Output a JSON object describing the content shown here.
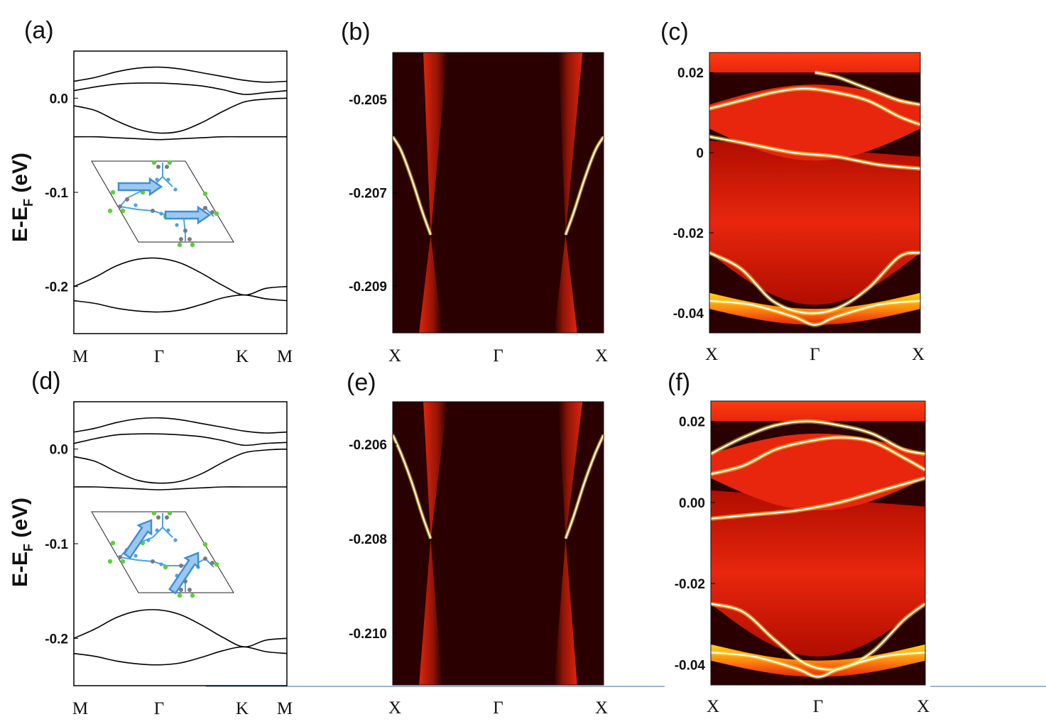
{
  "figure": {
    "ylabel_main": "E-E",
    "ylabel_sub": "F",
    "ylabel_unit": " (eV)"
  },
  "colors": {
    "band_line": "#000000",
    "spectral_background": "#2a0000",
    "spectral_mid": "#e8260d",
    "spectral_high": "#ffd21a",
    "spectral_peak": "#ffffff",
    "spin_arrow": "#3d8fd6",
    "spin_arrow_fill": "#9cc8f0",
    "atom_carbon": "#7a7a7a",
    "atom_nitrogen": "#4aa2e6",
    "atom_cl": "#5ccf3a"
  },
  "chart_data": [
    {
      "id": "a",
      "panel_label": "(a)",
      "type": "line",
      "ylim": [
        -0.25,
        0.05
      ],
      "yticks": [
        "0.0",
        "-0.1",
        "-0.2"
      ],
      "ytick_values": [
        0.0,
        -0.1,
        -0.2
      ],
      "k_positions": [
        0,
        0.4,
        0.8,
        1.0
      ],
      "k_labels": [
        "M",
        "Γ",
        "K",
        "M"
      ],
      "inset": "spin-in-plane",
      "series": [
        {
          "x": [
            0,
            0.1,
            0.2,
            0.3,
            0.4,
            0.5,
            0.6,
            0.7,
            0.8,
            0.9,
            1.0
          ],
          "values": [
            0.018,
            0.022,
            0.028,
            0.032,
            0.033,
            0.031,
            0.027,
            0.023,
            0.019,
            0.017,
            0.018
          ]
        },
        {
          "x": [
            0,
            0.1,
            0.2,
            0.3,
            0.4,
            0.5,
            0.6,
            0.7,
            0.8,
            0.9,
            1.0
          ],
          "values": [
            0.008,
            0.012,
            0.015,
            0.016,
            0.016,
            0.015,
            0.013,
            0.009,
            0.004,
            0.006,
            0.008
          ]
        },
        {
          "x": [
            0,
            0.1,
            0.2,
            0.3,
            0.4,
            0.5,
            0.6,
            0.7,
            0.8,
            0.9,
            1.0
          ],
          "values": [
            -0.008,
            -0.013,
            -0.024,
            -0.033,
            -0.037,
            -0.035,
            -0.026,
            -0.014,
            -0.004,
            -0.001,
            0.0
          ]
        },
        {
          "x": [
            0,
            0.1,
            0.2,
            0.3,
            0.4,
            0.5,
            0.6,
            0.7,
            0.8,
            0.9,
            1.0
          ],
          "values": [
            -0.041,
            -0.041,
            -0.042,
            -0.043,
            -0.044,
            -0.043,
            -0.042,
            -0.041,
            -0.041,
            -0.041,
            -0.041
          ]
        },
        {
          "x": [
            0,
            0.1,
            0.2,
            0.3,
            0.4,
            0.5,
            0.6,
            0.7,
            0.8,
            0.9,
            1.0
          ],
          "values": [
            -0.2,
            -0.19,
            -0.178,
            -0.171,
            -0.17,
            -0.175,
            -0.186,
            -0.199,
            -0.209,
            -0.202,
            -0.2
          ]
        },
        {
          "x": [
            0,
            0.1,
            0.2,
            0.3,
            0.4,
            0.5,
            0.6,
            0.7,
            0.8,
            0.9,
            1.0
          ],
          "values": [
            -0.215,
            -0.218,
            -0.223,
            -0.226,
            -0.227,
            -0.225,
            -0.219,
            -0.212,
            -0.209,
            -0.213,
            -0.215
          ]
        }
      ]
    },
    {
      "id": "b",
      "panel_label": "(b)",
      "type": "heatmap",
      "ylim": [
        -0.21,
        -0.204
      ],
      "yticks": [
        "-0.205",
        "-0.207",
        "-0.209"
      ],
      "ytick_values": [
        -0.205,
        -0.207,
        -0.209
      ],
      "k_labels": [
        "X",
        "Γ",
        "X"
      ],
      "cone_energy": -0.2079,
      "cone_k": [
        0.18,
        0.82
      ],
      "edge_states": [
        {
          "x": [
            0.0,
            0.04,
            0.09,
            0.14,
            0.18
          ],
          "values": [
            -0.2058,
            -0.2061,
            -0.2067,
            -0.2074,
            -0.2079
          ]
        },
        {
          "x": [
            1.0,
            0.96,
            0.91,
            0.86,
            0.82
          ],
          "values": [
            -0.2058,
            -0.2061,
            -0.2067,
            -0.2074,
            -0.2079
          ]
        }
      ]
    },
    {
      "id": "c",
      "panel_label": "(c)",
      "type": "heatmap",
      "ylim": [
        -0.045,
        0.025
      ],
      "yticks": [
        "0.02",
        "0",
        "-0.02",
        "-0.04"
      ],
      "ytick_values": [
        0.02,
        0.0,
        -0.02,
        -0.04
      ],
      "k_labels": [
        "X",
        "Γ",
        "X"
      ],
      "edge_states": [
        {
          "x": [
            0.0,
            0.2,
            0.4,
            0.6,
            0.8,
            1.0
          ],
          "values": [
            0.004,
            0.002,
            0.0,
            -0.001,
            -0.003,
            -0.004
          ]
        },
        {
          "x": [
            0.5,
            0.6,
            0.7,
            0.8,
            0.9,
            1.0
          ],
          "values": [
            0.02,
            0.019,
            0.017,
            0.015,
            0.013,
            0.012
          ]
        },
        {
          "x": [
            0.0,
            0.15,
            0.3,
            0.45,
            0.6,
            0.75,
            0.9,
            1.0
          ],
          "values": [
            0.011,
            0.013,
            0.015,
            0.016,
            0.015,
            0.013,
            0.009,
            0.007
          ]
        },
        {
          "x": [
            0.0,
            0.15,
            0.3,
            0.45,
            0.6,
            0.75,
            0.9,
            1.0
          ],
          "values": [
            -0.025,
            -0.029,
            -0.037,
            -0.04,
            -0.039,
            -0.034,
            -0.026,
            -0.025
          ]
        },
        {
          "x": [
            0.0,
            0.2,
            0.4,
            0.5,
            0.6,
            0.8,
            1.0
          ],
          "values": [
            -0.037,
            -0.038,
            -0.041,
            -0.043,
            -0.041,
            -0.038,
            -0.037
          ]
        }
      ]
    },
    {
      "id": "d",
      "panel_label": "(d)",
      "type": "line",
      "ylim": [
        -0.25,
        0.05
      ],
      "yticks": [
        "0.0",
        "-0.1",
        "-0.2"
      ],
      "ytick_values": [
        0.0,
        -0.1,
        -0.2
      ],
      "k_positions": [
        0,
        0.4,
        0.8,
        1.0
      ],
      "k_labels": [
        "M",
        "Γ",
        "K",
        "M"
      ],
      "inset": "spin-tilted",
      "series": [
        {
          "x": [
            0,
            0.1,
            0.2,
            0.3,
            0.4,
            0.5,
            0.6,
            0.7,
            0.8,
            0.9,
            1.0
          ],
          "values": [
            0.018,
            0.022,
            0.028,
            0.032,
            0.033,
            0.031,
            0.027,
            0.023,
            0.019,
            0.017,
            0.018
          ]
        },
        {
          "x": [
            0,
            0.1,
            0.2,
            0.3,
            0.4,
            0.5,
            0.6,
            0.7,
            0.8,
            0.9,
            1.0
          ],
          "values": [
            0.006,
            0.011,
            0.015,
            0.016,
            0.016,
            0.015,
            0.013,
            0.009,
            0.004,
            0.006,
            0.007
          ]
        },
        {
          "x": [
            0,
            0.1,
            0.2,
            0.3,
            0.4,
            0.5,
            0.6,
            0.7,
            0.8,
            0.9,
            1.0
          ],
          "values": [
            -0.008,
            -0.013,
            -0.024,
            -0.033,
            -0.036,
            -0.034,
            -0.026,
            -0.014,
            -0.004,
            -0.001,
            0.0
          ]
        },
        {
          "x": [
            0,
            0.1,
            0.2,
            0.3,
            0.4,
            0.5,
            0.6,
            0.7,
            0.8,
            0.9,
            1.0
          ],
          "values": [
            -0.04,
            -0.04,
            -0.041,
            -0.042,
            -0.043,
            -0.042,
            -0.041,
            -0.04,
            -0.04,
            -0.04,
            -0.04
          ]
        },
        {
          "x": [
            0,
            0.1,
            0.2,
            0.3,
            0.4,
            0.5,
            0.6,
            0.7,
            0.8,
            0.9,
            1.0
          ],
          "values": [
            -0.2,
            -0.19,
            -0.178,
            -0.171,
            -0.17,
            -0.175,
            -0.186,
            -0.199,
            -0.209,
            -0.202,
            -0.2
          ]
        },
        {
          "x": [
            0,
            0.1,
            0.2,
            0.3,
            0.4,
            0.5,
            0.6,
            0.7,
            0.8,
            0.9,
            1.0
          ],
          "values": [
            -0.216,
            -0.219,
            -0.224,
            -0.227,
            -0.228,
            -0.226,
            -0.22,
            -0.213,
            -0.209,
            -0.214,
            -0.216
          ]
        }
      ]
    },
    {
      "id": "e",
      "panel_label": "(e)",
      "type": "heatmap",
      "ylim": [
        -0.2111,
        -0.2051
      ],
      "yticks": [
        "-0.206",
        "-0.208",
        "-0.210"
      ],
      "ytick_values": [
        -0.206,
        -0.208,
        -0.21
      ],
      "k_labels": [
        "X",
        "Γ",
        "X"
      ],
      "cone_energy": -0.208,
      "cone_k": [
        0.18,
        0.82
      ],
      "edge_states": [
        {
          "x": [
            0.0,
            0.04,
            0.09,
            0.14,
            0.18
          ],
          "values": [
            -0.2058,
            -0.2062,
            -0.2068,
            -0.2075,
            -0.208
          ]
        },
        {
          "x": [
            1.0,
            0.96,
            0.91,
            0.86,
            0.82
          ],
          "values": [
            -0.2058,
            -0.2062,
            -0.2068,
            -0.2075,
            -0.208
          ]
        }
      ]
    },
    {
      "id": "f",
      "panel_label": "(f)",
      "type": "heatmap",
      "ylim": [
        -0.045,
        0.025
      ],
      "yticks": [
        "0.02",
        "0.00",
        "-0.02",
        "-0.04"
      ],
      "ytick_values": [
        0.02,
        0.0,
        -0.02,
        -0.04
      ],
      "k_labels": [
        "X",
        "Γ",
        "X"
      ],
      "edge_states": [
        {
          "x": [
            0.0,
            0.2,
            0.4,
            0.6,
            0.8,
            1.0
          ],
          "values": [
            -0.004,
            -0.003,
            -0.002,
            0.0,
            0.003,
            0.006
          ]
        },
        {
          "x": [
            0.0,
            0.15,
            0.3,
            0.45,
            0.6,
            0.75,
            0.9,
            1.0
          ],
          "values": [
            0.012,
            0.016,
            0.019,
            0.02,
            0.019,
            0.017,
            0.013,
            0.012
          ]
        },
        {
          "x": [
            0.0,
            0.15,
            0.3,
            0.45,
            0.6,
            0.75,
            0.9,
            1.0
          ],
          "values": [
            0.007,
            0.009,
            0.013,
            0.015,
            0.016,
            0.015,
            0.011,
            0.008
          ]
        },
        {
          "x": [
            0.0,
            0.15,
            0.3,
            0.45,
            0.6,
            0.75,
            0.9,
            1.0
          ],
          "values": [
            -0.025,
            -0.027,
            -0.034,
            -0.04,
            -0.041,
            -0.037,
            -0.029,
            -0.025
          ]
        },
        {
          "x": [
            0.0,
            0.2,
            0.4,
            0.5,
            0.6,
            0.8,
            1.0
          ],
          "values": [
            -0.037,
            -0.038,
            -0.041,
            -0.043,
            -0.041,
            -0.038,
            -0.037
          ]
        }
      ]
    }
  ]
}
